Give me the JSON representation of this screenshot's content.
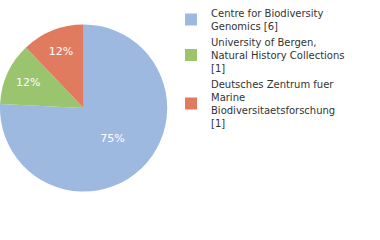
{
  "chart_data": {
    "type": "pie",
    "categories": [
      "Centre for Biodiversity Genomics [6]",
      "University of Bergen, Natural History Collections [1]",
      "Deutsches Zentrum fuer Marine Biodiversitaetsforschung [1]"
    ],
    "values": [
      75,
      12,
      12
    ],
    "value_labels": [
      "75%",
      "12%",
      "12%"
    ],
    "colors": [
      "#9db9e0",
      "#9bc46f",
      "#e07b5f"
    ],
    "data_labels": true,
    "legend": "right"
  }
}
